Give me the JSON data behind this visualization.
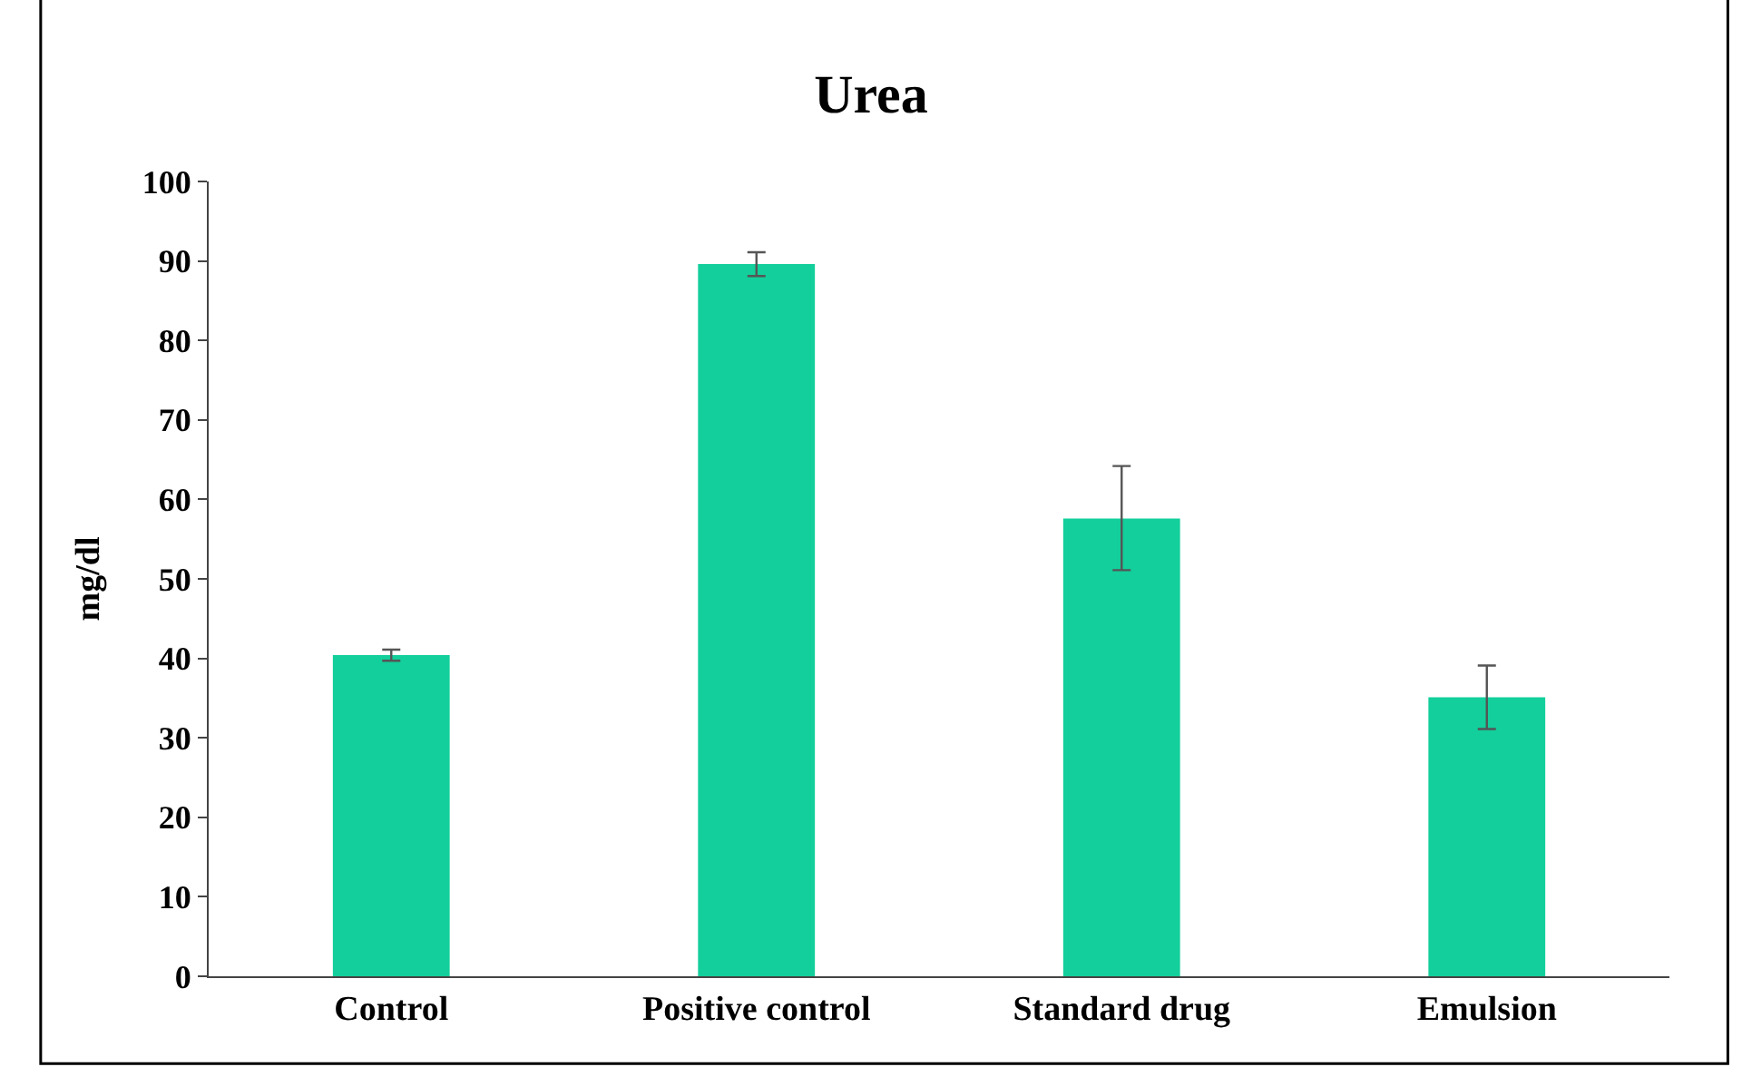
{
  "chart_data": {
    "type": "bar",
    "title": "Urea",
    "ylabel": "mg/dl",
    "categories": [
      "Control",
      "Positive control",
      "Standard drug",
      "Emulsion"
    ],
    "values": [
      40.4,
      89.6,
      57.6,
      35.1
    ],
    "errors": [
      0.7,
      1.5,
      [
        51.1,
        64.2
      ],
      [
        31.1,
        39.1
      ]
    ],
    "color": "#13cf9b",
    "ylim": [
      0,
      100
    ],
    "yticks": [
      0,
      10,
      20,
      30,
      40,
      50,
      60,
      70,
      80,
      90,
      100
    ]
  }
}
